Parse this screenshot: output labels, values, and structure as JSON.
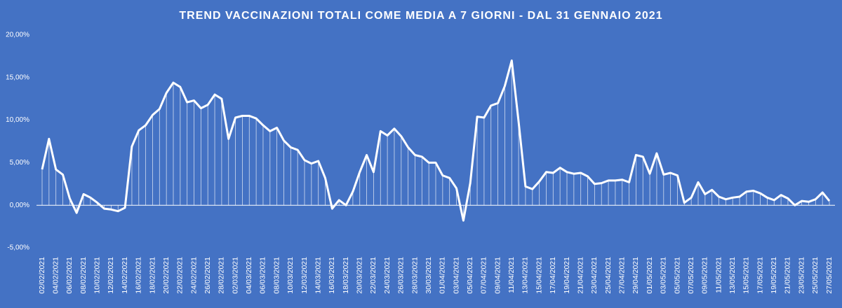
{
  "chart_data": {
    "type": "line",
    "title": "TREND VACCINAZIONI TOTALI COME MEDIA A 7 GIORNI - DAL 31 GENNAIO 2021",
    "categories": [
      "02/02/2021",
      null,
      "04/02/2021",
      null,
      "06/02/2021",
      null,
      "08/02/2021",
      null,
      "10/02/2021",
      null,
      "12/02/2021",
      null,
      "14/02/2021",
      null,
      "16/02/2021",
      null,
      "18/02/2021",
      null,
      "20/02/2021",
      null,
      "22/02/2021",
      null,
      "24/02/2021",
      null,
      "26/02/2021",
      null,
      "28/02/2021",
      null,
      "02/03/2021",
      null,
      "04/03/2021",
      null,
      "06/03/2021",
      null,
      "08/03/2021",
      null,
      "10/03/2021",
      null,
      "12/03/2021",
      null,
      "14/03/2021",
      null,
      "16/03/2021",
      null,
      "18/03/2021",
      null,
      "20/03/2021",
      null,
      "22/03/2021",
      null,
      "24/03/2021",
      null,
      "26/03/2021",
      null,
      "28/03/2021",
      null,
      "30/03/2021",
      null,
      "01/04/2021",
      null,
      "03/04/2021",
      null,
      "05/04/2021",
      null,
      "07/04/2021",
      null,
      "09/04/2021",
      null,
      "11/04/2021",
      null,
      "13/04/2021",
      null,
      "15/04/2021",
      null,
      "17/04/2021",
      null,
      "19/04/2021",
      null,
      "21/04/2021",
      null,
      "23/04/2021",
      null,
      "25/04/2021",
      null,
      "27/04/2021",
      null,
      "29/04/2021",
      null,
      "01/05/2021",
      null,
      "03/05/2021",
      null,
      "05/05/2021",
      null,
      "07/05/2021",
      null,
      "09/05/2021",
      null,
      "11/05/2021",
      null,
      "13/05/2021",
      null,
      "15/05/2021",
      null,
      "17/05/2021",
      null,
      "19/05/2021",
      null,
      "21/05/2021",
      null,
      "23/05/2021",
      null,
      "25/05/2021",
      null,
      "27/05/2021"
    ],
    "values": [
      4.2,
      7.8,
      4.2,
      3.6,
      0.8,
      -0.9,
      1.3,
      0.9,
      0.3,
      -0.4,
      -0.5,
      -0.7,
      -0.3,
      6.9,
      8.8,
      9.4,
      10.6,
      11.3,
      13.2,
      14.4,
      13.9,
      12.1,
      12.3,
      11.4,
      11.8,
      13.0,
      12.5,
      7.8,
      10.3,
      10.5,
      10.5,
      10.2,
      9.4,
      8.7,
      9.1,
      7.6,
      6.8,
      6.5,
      5.3,
      4.9,
      5.2,
      3.2,
      -0.4,
      0.6,
      0.0,
      1.6,
      3.9,
      5.9,
      3.9,
      8.7,
      8.2,
      9.0,
      8.1,
      6.8,
      5.9,
      5.7,
      5.0,
      5.0,
      3.5,
      3.2,
      2.0,
      -1.8,
      2.6,
      10.4,
      10.3,
      11.7,
      12.0,
      14.0,
      17.0,
      9.8,
      2.2,
      1.9,
      2.8,
      3.9,
      3.8,
      4.4,
      3.9,
      3.7,
      3.8,
      3.4,
      2.5,
      2.6,
      2.9,
      2.9,
      3.0,
      2.7,
      5.9,
      5.7,
      3.7,
      6.1,
      3.6,
      3.8,
      3.5,
      0.3,
      0.9,
      2.7,
      1.3,
      1.8,
      1.0,
      0.7,
      0.9,
      1.0,
      1.6,
      1.7,
      1.4,
      0.9,
      0.6,
      1.2,
      0.8,
      0.0,
      0.5,
      0.4,
      0.7,
      1.5,
      0.5
    ],
    "color": "#ffffff",
    "ylim": [
      -5,
      20
    ],
    "yticks": [
      {
        "value": -5,
        "label": "-5,00%"
      },
      {
        "value": 0,
        "label": "0,00%"
      },
      {
        "value": 5,
        "label": "5,00%"
      },
      {
        "value": 10,
        "label": "10,00%"
      },
      {
        "value": 15,
        "label": "15,00%"
      },
      {
        "value": 20,
        "label": "20,00%"
      }
    ]
  }
}
